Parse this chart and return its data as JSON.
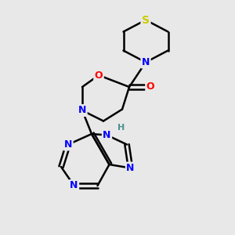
{
  "background_color": "#e8e8e8",
  "bond_color": "#000000",
  "atom_colors": {
    "N": "#0000ff",
    "O": "#ff0000",
    "S": "#cccc00",
    "H": "#4a9090",
    "C": "#000000"
  },
  "figsize": [
    3.0,
    3.0
  ],
  "dpi": 100
}
